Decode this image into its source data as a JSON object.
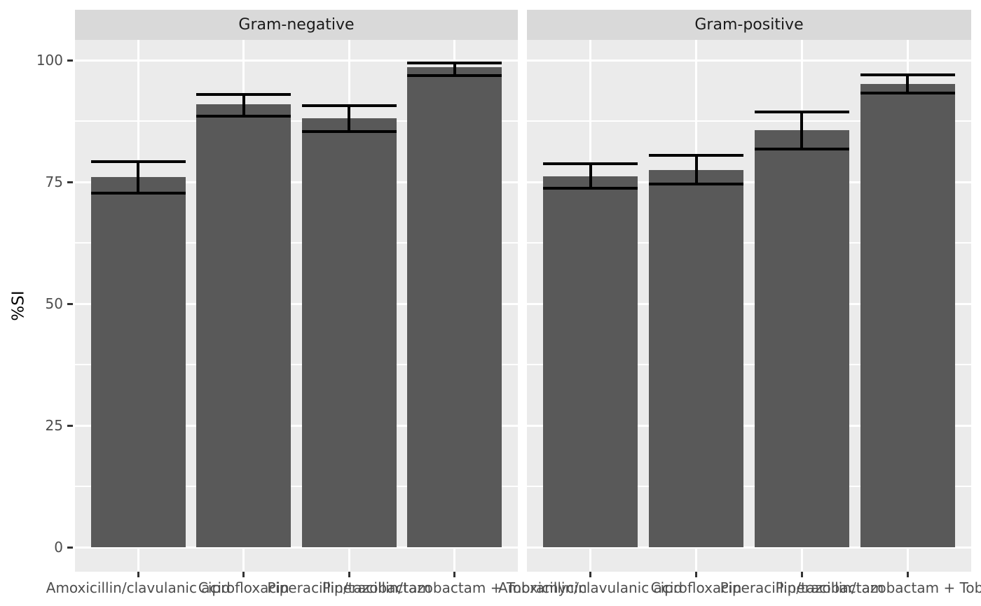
{
  "chart_data": {
    "type": "bar",
    "title": "",
    "xlabel": "",
    "ylabel": "%SI",
    "ylim": [
      0,
      100
    ],
    "yticks": [
      0,
      25,
      50,
      75,
      100
    ],
    "grid": {
      "major": [
        0,
        25,
        50,
        75,
        100
      ],
      "minor": [
        12.5,
        37.5,
        62.5,
        87.5
      ],
      "vertical_major_at_categories": true
    },
    "legend_position": "none",
    "categories": [
      "Amoxicillin/clavulanic acid",
      "Ciprofloxacin",
      "Piperacillin/tazobactam",
      "Piperacillin/tazobactam + Tobramycin"
    ],
    "facets": [
      {
        "label": "Gram-negative",
        "values": [
          76.0,
          90.9,
          88.1,
          98.6
        ],
        "ci_low": [
          72.7,
          88.5,
          85.4,
          96.9
        ],
        "ci_high": [
          79.2,
          92.9,
          90.7,
          99.4
        ]
      },
      {
        "label": "Gram-positive",
        "values": [
          76.2,
          77.4,
          85.7,
          95.1
        ],
        "ci_low": [
          73.7,
          74.5,
          81.7,
          93.2
        ],
        "ci_high": [
          78.7,
          80.5,
          89.4,
          97.0
        ]
      }
    ],
    "colors": {
      "bar_fill": "#595959",
      "errorbar": "#000000",
      "panel_bg": "#EBEBEB",
      "strip_bg": "#D9D9D9",
      "grid_line": "#FFFFFF",
      "tick_label_text": "#4D4D4D",
      "strip_text": "#1A1A1A",
      "axis_title_text": "#000000",
      "tick_mark": "#333333"
    }
  }
}
